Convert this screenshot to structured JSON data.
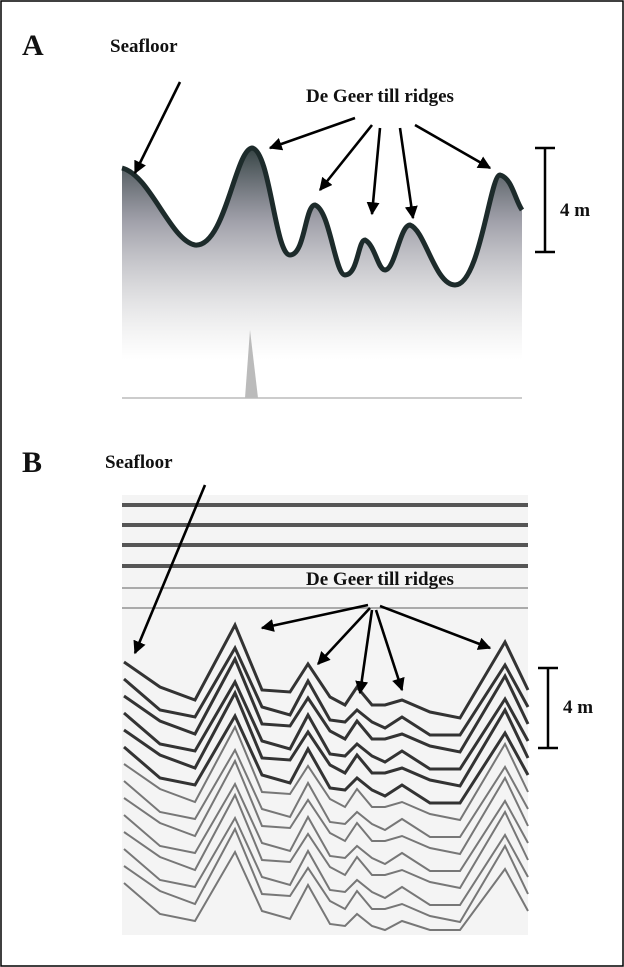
{
  "panels": [
    {
      "label": "A",
      "seafloor_label": "Seafloor",
      "ridges_label": "De Geer till ridges",
      "scale_label": "4 m"
    },
    {
      "label": "B",
      "seafloor_label": "Seafloor",
      "ridges_label": "De Geer till ridges",
      "scale_label": "4 m"
    }
  ]
}
